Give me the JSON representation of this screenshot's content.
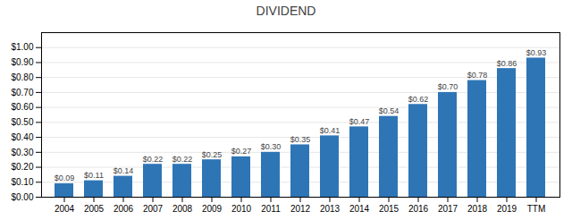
{
  "chart_data": {
    "type": "bar",
    "title": "DIVIDEND",
    "categories": [
      "2004",
      "2005",
      "2006",
      "2007",
      "2008",
      "2009",
      "2010",
      "2011",
      "2012",
      "2013",
      "2014",
      "2015",
      "2016",
      "2017",
      "2018",
      "2019",
      "TTM"
    ],
    "values": [
      0.09,
      0.11,
      0.14,
      0.22,
      0.22,
      0.25,
      0.27,
      0.3,
      0.35,
      0.41,
      0.47,
      0.54,
      0.62,
      0.7,
      0.78,
      0.86,
      0.93
    ],
    "value_labels": [
      "$0.09",
      "$0.11",
      "$0.14",
      "$0.22",
      "$0.22",
      "$0.25",
      "$0.27",
      "$0.30",
      "$0.35",
      "$0.41",
      "$0.47",
      "$0.54",
      "$0.62",
      "$0.70",
      "$0.78",
      "$0.86",
      "$0.93"
    ],
    "color": "#2E75B6",
    "ylim": [
      0,
      1.1
    ],
    "yticks": [
      {
        "value": 0.0,
        "label": "$0.00"
      },
      {
        "value": 0.1,
        "label": "$0.10"
      },
      {
        "value": 0.2,
        "label": "$0.20"
      },
      {
        "value": 0.3,
        "label": "$0.30"
      },
      {
        "value": 0.4,
        "label": "$0.40"
      },
      {
        "value": 0.5,
        "label": "$0.50"
      },
      {
        "value": 0.6,
        "label": "$0.60"
      },
      {
        "value": 0.7,
        "label": "$0.70"
      },
      {
        "value": 0.8,
        "label": "$0.80"
      },
      {
        "value": 0.9,
        "label": "$0.90"
      },
      {
        "value": 1.0,
        "label": "$1.00"
      }
    ],
    "grid": true,
    "data_labels": true
  }
}
